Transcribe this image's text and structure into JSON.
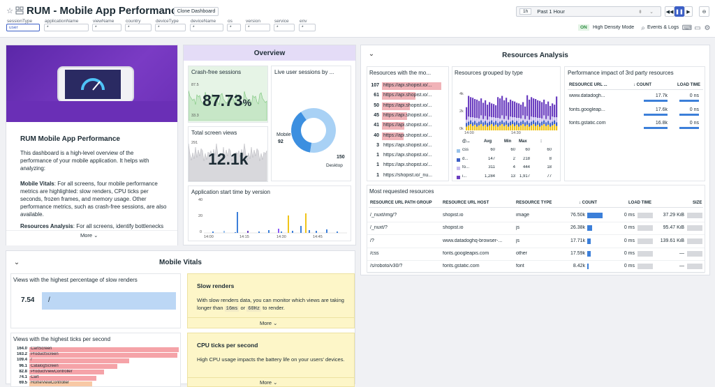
{
  "header": {
    "title": "RUM - Mobile App Performance",
    "clone_label": "Clone Dashboard",
    "time_short": "1h",
    "time_label": "Past 1 Hour",
    "density_on": "ON",
    "density_label": "High Density Mode",
    "events_label": "Events & Logs"
  },
  "variables": [
    {
      "name": "sessionType",
      "value": "user"
    },
    {
      "name": "applicationName",
      "value": "*"
    },
    {
      "name": "viewName",
      "value": "*"
    },
    {
      "name": "country",
      "value": "*"
    },
    {
      "name": "deviceType",
      "value": "*"
    },
    {
      "name": "deviceName",
      "value": "*"
    },
    {
      "name": "os",
      "value": "*"
    },
    {
      "name": "version",
      "value": "*"
    },
    {
      "name": "service",
      "value": "*"
    },
    {
      "name": "env",
      "value": "*"
    }
  ],
  "intro": {
    "heading": "RUM Mobile App Performance",
    "p1": "This dashboard is a high-level overview of the performance of your mobile application. It helps with analyzing:",
    "p2_bold": "Mobile Vitals",
    "p2": ": For all screens, four mobile performance metrics are highlighted: slow renders, CPU ticks per seconds, frozen frames, and memory usage. Other performance metrics, such as crash-free sessions, are also available.",
    "p3_bold": "Resources Analysis",
    "p3": ": For all screens, identify bottlenecks",
    "more": "More"
  },
  "overview": {
    "title": "Overview",
    "crash_title": "Crash-free sessions",
    "crash_value": "87.73",
    "crash_unit": "%",
    "crash_top": "87.5",
    "crash_bottom": "33.3",
    "live_title": "Live user sessions by ...",
    "donut_mobile_label": "Mobile",
    "donut_mobile_value": "92",
    "donut_desktop_value": "150",
    "donut_desktop_label": "Desktop",
    "donut_mobile_share": 0.38,
    "screens_title": "Total screen views",
    "screens_top": "291",
    "screens_value": "12.1k",
    "start_title": "Application start time by version",
    "start_y_top": "40",
    "start_y_mid": "20",
    "start_y_zero": "0",
    "start_ticks": [
      "14:00",
      "14:15",
      "14:30",
      "14:45"
    ]
  },
  "resources": {
    "title": "Resources Analysis",
    "top_title": "Resources with the mo...",
    "top_rows": [
      {
        "count": "107",
        "url": "https://api.shopist.io/...",
        "fill": 1.0
      },
      {
        "count": "61",
        "url": "https://api.shopist.io/...",
        "fill": 0.57
      },
      {
        "count": "50",
        "url": "https://api.shopist.io/...",
        "fill": 0.47
      },
      {
        "count": "45",
        "url": "https://api.shopist.io/...",
        "fill": 0.42
      },
      {
        "count": "41",
        "url": "https://api.shopist.io/...",
        "fill": 0.38
      },
      {
        "count": "40",
        "url": "https://api.shopist.io/...",
        "fill": 0.37
      },
      {
        "count": "3",
        "url": "https://api.shopist.io/...",
        "fill": 0
      },
      {
        "count": "1",
        "url": "https://api.shopist.io/...",
        "fill": 0
      },
      {
        "count": "1",
        "url": "https://api.shopist.io/...",
        "fill": 0
      },
      {
        "count": "1",
        "url": "https://shopist.io/_nu...",
        "fill": 0
      }
    ],
    "grouped_title": "Resources grouped by type",
    "grouped_y": [
      "4k",
      "2k",
      "0k"
    ],
    "grouped_x": [
      "14:00",
      "14:30"
    ],
    "grouped_headers": [
      "@...",
      "Avg",
      "Min",
      "Max",
      ":"
    ],
    "grouped_rows": [
      {
        "name": "css",
        "avg": "60",
        "min": "60",
        "max": "60",
        "last": "60",
        "color": "#9ac3ea"
      },
      {
        "name": "d...",
        "avg": "147",
        "min": "2",
        "max": "218",
        "last": "8",
        "color": "#3c5fc6"
      },
      {
        "name": "fo...",
        "avg": "311",
        "min": "4",
        "max": "444",
        "last": "18",
        "color": "#c8bdf0"
      },
      {
        "name": "i...",
        "avg": "1,284",
        "min": "13",
        "max": "1,917",
        "last": "77",
        "color": "#6b3fc0"
      }
    ],
    "third_title": "Performance impact of 3rd party resources",
    "third_headers": [
      "RESOURCE URL ...",
      "COUNT",
      "LOAD TIME"
    ],
    "third_rows": [
      {
        "url": "www.datadogh...",
        "count": "17.7k",
        "load": "0 ns"
      },
      {
        "url": "fonts.googleap...",
        "count": "17.6k",
        "load": "0 ns"
      },
      {
        "url": "fonts.gstatic.com",
        "count": "16.8k",
        "load": "0 ns"
      }
    ],
    "most_title": "Most requested resources",
    "most_headers": [
      "RESOURCE URL PATH GROUP",
      "RESOURCE URL HOST",
      "RESOURCE TYPE",
      "COUNT",
      "LOAD TIME",
      "SIZE"
    ],
    "most_rows": [
      {
        "path": "/_nuxt/img/?",
        "host": "shopist.io",
        "type": "image",
        "count": "76.50k",
        "load": "0 ms",
        "size": "37.29 KiB",
        "fill": 1.0
      },
      {
        "path": "/_nuxt/?",
        "host": "shopist.io",
        "type": "js",
        "count": "26.38k",
        "load": "0 ms",
        "size": "95.47 KiB",
        "fill": 0.34
      },
      {
        "path": "/?",
        "host": "www.datadoghq-browser-...",
        "type": "js",
        "count": "17.71k",
        "load": "0 ms",
        "size": "139.61 KiB",
        "fill": 0.23
      },
      {
        "path": "/css",
        "host": "fonts.googleapis.com",
        "type": "other",
        "count": "17.59k",
        "load": "0 ms",
        "size": "—",
        "fill": 0.23
      },
      {
        "path": "/s/roboto/v30/?",
        "host": "fonts.gstatic.com",
        "type": "font",
        "count": "8.42k",
        "load": "0 ms",
        "size": "—",
        "fill": 0.11
      }
    ]
  },
  "vitals": {
    "title": "Mobile Vitals",
    "slow_title": "Views with the highest percentage of slow renders",
    "slow_value": "7.54",
    "slow_view": "/",
    "slow_note_title": "Slow renders",
    "slow_note_text": "With slow renders data, you can monitor which views are taking longer than ",
    "slow_code1": "16ms",
    "slow_or": " or ",
    "slow_code2": "60Hz",
    "slow_end": " to render.",
    "more": "More",
    "ticks_title": "Views with the highest ticks per second",
    "ticks_rows": [
      {
        "value": "164.0",
        "name": "CartScreen",
        "fill": 1.0
      },
      {
        "value": "163.2",
        "name": "ProductScreen",
        "fill": 0.99
      },
      {
        "value": "109.4",
        "name": "/",
        "fill": 0.67
      },
      {
        "value": "96.1",
        "name": "CatalogScreen",
        "fill": 0.59
      },
      {
        "value": "82.8",
        "name": "ProductViewController",
        "fill": 0.5
      },
      {
        "value": "74.1",
        "name": "Cart",
        "fill": 0.45
      },
      {
        "value": "69.5",
        "name": "HomeViewController",
        "fill": 0.42
      }
    ],
    "cpu_note_title": "CPU ticks per second",
    "cpu_note_text": "High CPU usage impacts the battery life on your users' devices."
  }
}
